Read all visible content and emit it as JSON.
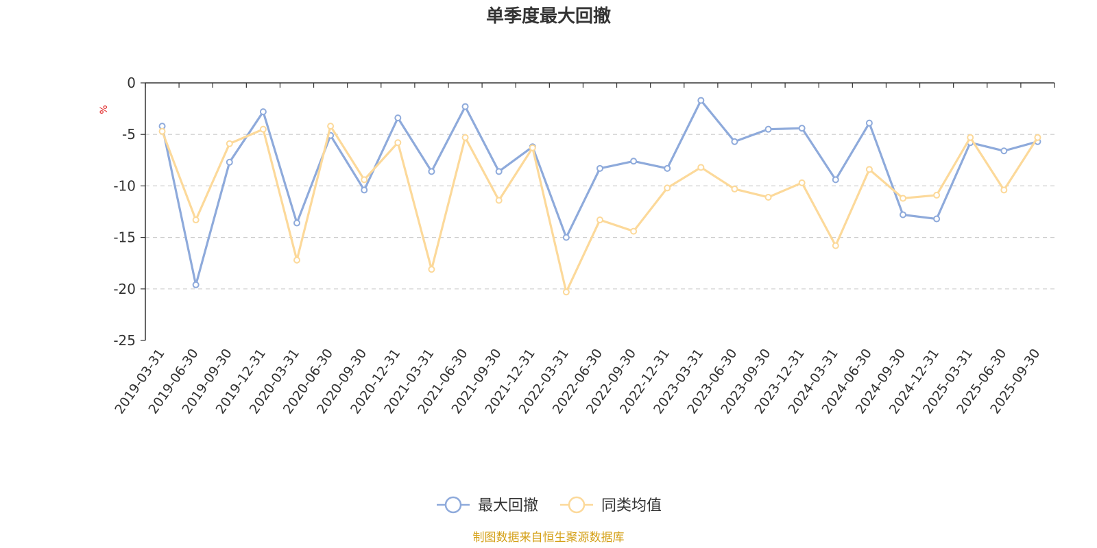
{
  "chart_data": {
    "type": "line",
    "title": "单季度最大回撤",
    "unit_label": "%",
    "ylim": [
      -25,
      0
    ],
    "y_ticks": [
      0,
      -5,
      -10,
      -15,
      -20,
      -25
    ],
    "grid": "dashed horizontal",
    "legend_position": "bottom-center",
    "categories": [
      "2019-03-31",
      "2019-06-30",
      "2019-09-30",
      "2019-12-31",
      "2020-03-31",
      "2020-06-30",
      "2020-09-30",
      "2020-12-31",
      "2021-03-31",
      "2021-06-30",
      "2021-09-30",
      "2021-12-31",
      "2022-03-31",
      "2022-06-30",
      "2022-09-30",
      "2022-12-31",
      "2023-03-31",
      "2023-06-30",
      "2023-09-30",
      "2023-12-31",
      "2024-03-31",
      "2024-06-30",
      "2024-09-30",
      "2024-12-31",
      "2025-03-31",
      "2025-06-30",
      "2025-09-30"
    ],
    "series": [
      {
        "name": "最大回撤",
        "color": "#8eaadb",
        "values": [
          -4.2,
          -19.6,
          -7.7,
          -2.8,
          -13.6,
          -5.1,
          -10.4,
          -3.4,
          -8.6,
          -2.3,
          -8.6,
          -6.2,
          -15.0,
          -8.3,
          -7.6,
          -8.3,
          -1.7,
          -5.7,
          -4.5,
          -4.4,
          -9.4,
          -3.9,
          -12.8,
          -13.2,
          -5.8,
          -6.6,
          -5.7
        ]
      },
      {
        "name": "同类均值",
        "color": "#fcd99a",
        "values": [
          -4.7,
          -13.3,
          -5.9,
          -4.5,
          -17.2,
          -4.2,
          -9.4,
          -5.8,
          -18.1,
          -5.3,
          -11.4,
          -6.3,
          -20.3,
          -13.3,
          -14.4,
          -10.2,
          -8.2,
          -10.3,
          -11.1,
          -9.7,
          -15.8,
          -8.4,
          -11.2,
          -10.9,
          -5.3,
          -10.4,
          -5.3
        ]
      }
    ]
  },
  "source_text": "制图数据来自恒生聚源数据库",
  "colors": {
    "axis": "#333333",
    "grid": "#cccccc",
    "unit": "#e02020",
    "source": "#d4a017"
  }
}
